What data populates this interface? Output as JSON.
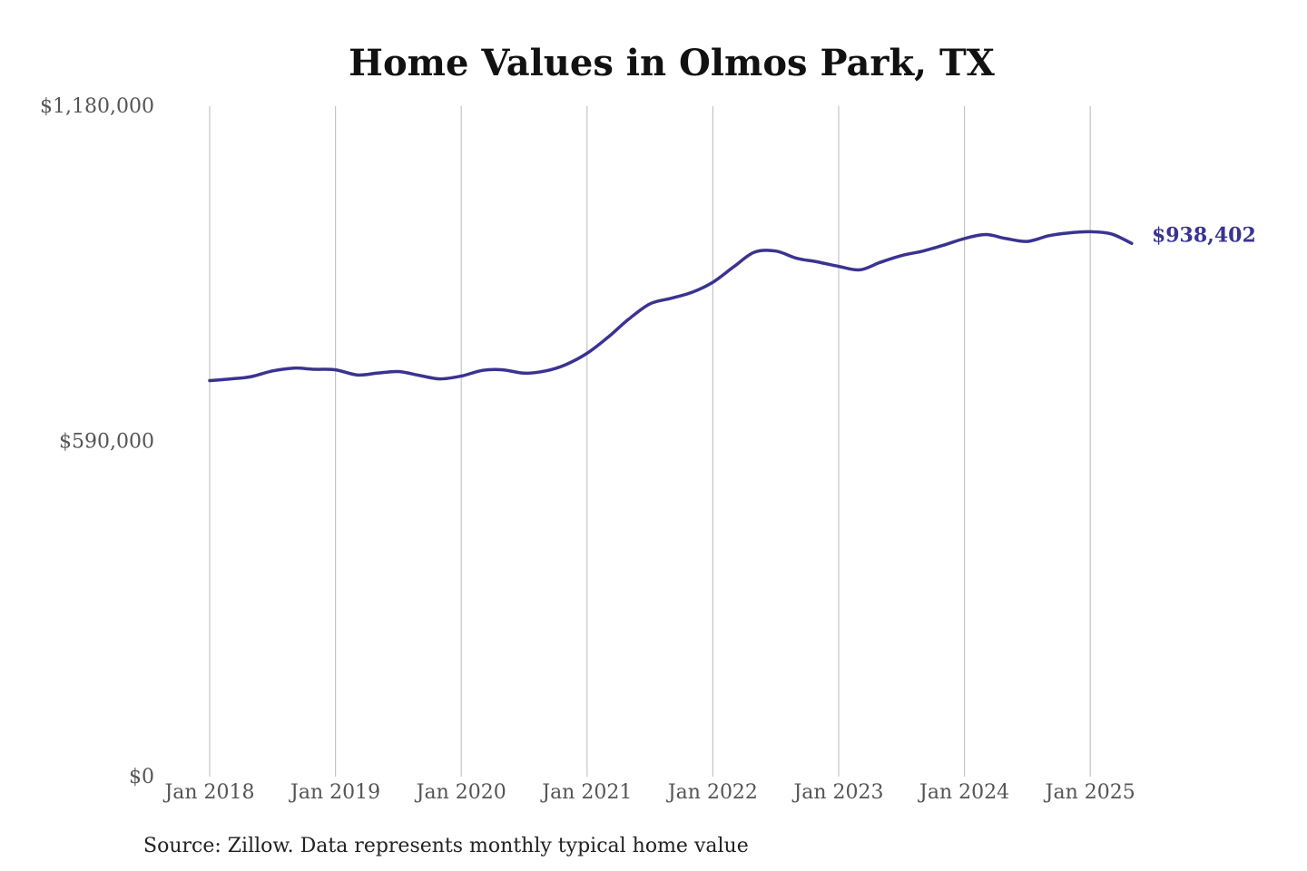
{
  "chart_data": {
    "type": "line",
    "title": "Home Values in Olmos Park, TX",
    "xlabel": "",
    "ylabel": "",
    "ylim": [
      0,
      1180000
    ],
    "y_ticks": [
      {
        "value": 0,
        "label": "$0"
      },
      {
        "value": 590000,
        "label": "$590,000"
      },
      {
        "value": 1180000,
        "label": "$1,180,000"
      }
    ],
    "x_ticks": [
      {
        "value": 2018.0,
        "label": "Jan 2018"
      },
      {
        "value": 2019.0,
        "label": "Jan 2019"
      },
      {
        "value": 2020.0,
        "label": "Jan 2020"
      },
      {
        "value": 2021.0,
        "label": "Jan 2021"
      },
      {
        "value": 2022.0,
        "label": "Jan 2022"
      },
      {
        "value": 2023.0,
        "label": "Jan 2023"
      },
      {
        "value": 2024.0,
        "label": "Jan 2024"
      },
      {
        "value": 2025.0,
        "label": "Jan 2025"
      }
    ],
    "grid": "vertical",
    "series": [
      {
        "color": "#3a3391",
        "points": [
          [
            2018.0,
            697000
          ],
          [
            2018.17,
            700000
          ],
          [
            2018.33,
            704000
          ],
          [
            2018.5,
            714000
          ],
          [
            2018.67,
            719000
          ],
          [
            2018.83,
            717000
          ],
          [
            2019.0,
            716000
          ],
          [
            2019.17,
            707000
          ],
          [
            2019.33,
            710000
          ],
          [
            2019.5,
            713000
          ],
          [
            2019.67,
            706000
          ],
          [
            2019.83,
            700000
          ],
          [
            2020.0,
            705000
          ],
          [
            2020.17,
            715000
          ],
          [
            2020.33,
            716000
          ],
          [
            2020.5,
            710000
          ],
          [
            2020.67,
            714000
          ],
          [
            2020.83,
            725000
          ],
          [
            2021.0,
            745000
          ],
          [
            2021.17,
            774000
          ],
          [
            2021.33,
            805000
          ],
          [
            2021.5,
            832000
          ],
          [
            2021.67,
            842000
          ],
          [
            2021.83,
            852000
          ],
          [
            2022.0,
            870000
          ],
          [
            2022.17,
            898000
          ],
          [
            2022.33,
            923000
          ],
          [
            2022.5,
            925000
          ],
          [
            2022.67,
            912000
          ],
          [
            2022.83,
            906000
          ],
          [
            2023.0,
            898000
          ],
          [
            2023.17,
            892000
          ],
          [
            2023.33,
            905000
          ],
          [
            2023.5,
            917000
          ],
          [
            2023.67,
            925000
          ],
          [
            2023.83,
            935000
          ],
          [
            2024.0,
            947000
          ],
          [
            2024.17,
            954000
          ],
          [
            2024.33,
            947000
          ],
          [
            2024.5,
            942000
          ],
          [
            2024.67,
            952000
          ],
          [
            2024.83,
            957000
          ],
          [
            2025.0,
            959000
          ],
          [
            2025.17,
            955000
          ],
          [
            2025.33,
            938402
          ]
        ]
      }
    ],
    "end_label": "$938,402",
    "source": "Source: Zillow. Data represents monthly typical home value"
  }
}
